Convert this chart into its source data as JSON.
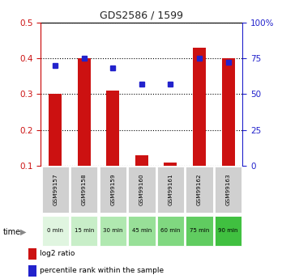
{
  "title": "GDS2586 / 1599",
  "samples": [
    "GSM99157",
    "GSM99158",
    "GSM99159",
    "GSM99160",
    "GSM99161",
    "GSM99162",
    "GSM99163"
  ],
  "time_labels": [
    "0 min",
    "15 min",
    "30 min",
    "45 min",
    "60 min",
    "75 min",
    "90 min"
  ],
  "log2_ratio": [
    0.3,
    0.4,
    0.31,
    0.13,
    0.11,
    0.43,
    0.4
  ],
  "percentile_rank": [
    70,
    75,
    68,
    57,
    57,
    75,
    72
  ],
  "bar_color": "#cc1111",
  "square_color": "#2222cc",
  "left_ylim": [
    0.1,
    0.5
  ],
  "right_ylim": [
    0,
    100
  ],
  "left_yticks": [
    0.1,
    0.2,
    0.3,
    0.4,
    0.5
  ],
  "right_yticks": [
    0,
    25,
    50,
    75,
    100
  ],
  "right_yticklabels": [
    "0",
    "25",
    "50",
    "75",
    "100%"
  ],
  "time_bg_colors": [
    "#e0f5e0",
    "#c8eec8",
    "#b0e8b0",
    "#98e098",
    "#80d880",
    "#60cc60",
    "#40c040"
  ],
  "sample_bg_color": "#d0d0d0",
  "legend_bar_label": "log2 ratio",
  "legend_sq_label": "percentile rank within the sample",
  "title_color": "#222222",
  "bar_width": 0.45
}
